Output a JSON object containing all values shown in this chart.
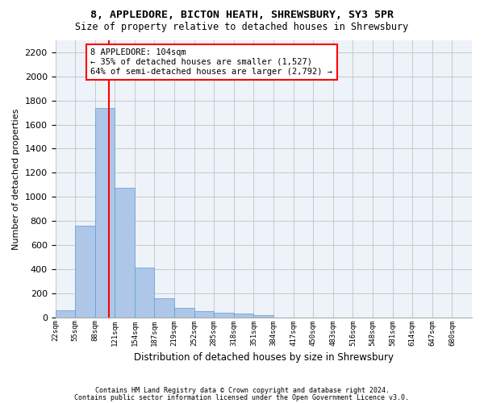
{
  "title1": "8, APPLEDORE, BICTON HEATH, SHREWSBURY, SY3 5PR",
  "title2": "Size of property relative to detached houses in Shrewsbury",
  "xlabel": "Distribution of detached houses by size in Shrewsbury",
  "ylabel": "Number of detached properties",
  "bar_color": "#aec6e8",
  "bar_edge_color": "#5a9fd4",
  "bins": [
    "22sqm",
    "55sqm",
    "88sqm",
    "121sqm",
    "154sqm",
    "187sqm",
    "219sqm",
    "252sqm",
    "285sqm",
    "318sqm",
    "351sqm",
    "384sqm",
    "417sqm",
    "450sqm",
    "483sqm",
    "516sqm",
    "548sqm",
    "581sqm",
    "614sqm",
    "647sqm",
    "680sqm"
  ],
  "values": [
    55,
    760,
    1740,
    1075,
    415,
    155,
    80,
    48,
    40,
    30,
    20,
    0,
    0,
    0,
    0,
    0,
    0,
    0,
    0,
    0,
    0
  ],
  "ylim": [
    0,
    2300
  ],
  "yticks": [
    0,
    200,
    400,
    600,
    800,
    1000,
    1200,
    1400,
    1600,
    1800,
    2000,
    2200
  ],
  "annotation_text": "8 APPLEDORE: 104sqm\n← 35% of detached houses are smaller (1,527)\n64% of semi-detached houses are larger (2,792) →",
  "vline_x": 2.7,
  "footer1": "Contains HM Land Registry data © Crown copyright and database right 2024.",
  "footer2": "Contains public sector information licensed under the Open Government Licence v3.0.",
  "bg_color": "#eef2f9",
  "grid_color": "#c8c8c8"
}
